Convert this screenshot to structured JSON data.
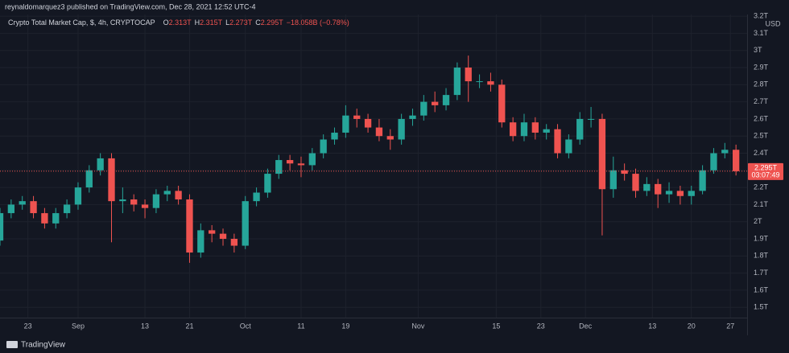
{
  "header": {
    "published": "reynaldomarquez3 published on TradingView.com, Dec 28, 2021 12:52 UTC-4",
    "brand": "TradingView"
  },
  "chart_data": {
    "type": "candlestick",
    "title": "Crypto Total Market Cap, $, 4h, CRYPTOCAP",
    "ohlc_legend": [
      {
        "key": "O",
        "value": "2.313T"
      },
      {
        "key": "H",
        "value": "2.315T"
      },
      {
        "key": "L",
        "value": "2.273T"
      },
      {
        "key": "C",
        "value": "2.295T"
      }
    ],
    "change": "−18.058B (−0.78%)",
    "currency": "USD",
    "x": [
      "2021-08-18",
      "2021-08-20",
      "2021-08-22",
      "2021-08-24",
      "2021-08-26",
      "2021-08-28",
      "2021-08-30",
      "2021-09-01",
      "2021-09-03",
      "2021-09-05",
      "2021-09-07",
      "2021-09-09",
      "2021-09-11",
      "2021-09-13",
      "2021-09-15",
      "2021-09-17",
      "2021-09-19",
      "2021-09-21",
      "2021-09-23",
      "2021-09-25",
      "2021-09-27",
      "2021-09-29",
      "2021-10-01",
      "2021-10-03",
      "2021-10-05",
      "2021-10-07",
      "2021-10-09",
      "2021-10-11",
      "2021-10-13",
      "2021-10-15",
      "2021-10-17",
      "2021-10-19",
      "2021-10-21",
      "2021-10-23",
      "2021-10-25",
      "2021-10-27",
      "2021-10-29",
      "2021-10-31",
      "2021-11-02",
      "2021-11-04",
      "2021-11-06",
      "2021-11-08",
      "2021-11-10",
      "2021-11-12",
      "2021-11-14",
      "2021-11-16",
      "2021-11-18",
      "2021-11-20",
      "2021-11-22",
      "2021-11-24",
      "2021-11-26",
      "2021-11-28",
      "2021-11-30",
      "2021-12-02",
      "2021-12-04",
      "2021-12-06",
      "2021-12-08",
      "2021-12-10",
      "2021-12-12",
      "2021-12-14",
      "2021-12-16",
      "2021-12-18",
      "2021-12-20",
      "2021-12-22",
      "2021-12-24",
      "2021-12-26",
      "2021-12-28"
    ],
    "open": [
      1.89,
      2.05,
      2.1,
      2.12,
      2.05,
      1.99,
      2.05,
      2.1,
      2.2,
      2.3,
      2.37,
      2.12,
      2.13,
      2.1,
      2.08,
      2.16,
      2.18,
      2.13,
      1.82,
      1.95,
      1.93,
      1.9,
      1.86,
      2.12,
      2.17,
      2.28,
      2.36,
      2.34,
      2.33,
      2.4,
      2.48,
      2.52,
      2.62,
      2.6,
      2.55,
      2.5,
      2.48,
      2.6,
      2.62,
      2.7,
      2.68,
      2.74,
      2.9,
      2.82,
      2.82,
      2.8,
      2.58,
      2.5,
      2.58,
      2.52,
      2.54,
      2.4,
      2.48,
      2.6,
      2.6,
      2.19,
      2.3,
      2.28,
      2.18,
      2.22,
      2.16,
      2.18,
      2.15,
      2.18,
      2.3,
      2.4,
      2.42
    ],
    "high": [
      2.08,
      2.13,
      2.15,
      2.15,
      2.08,
      2.08,
      2.13,
      2.23,
      2.33,
      2.4,
      2.4,
      2.2,
      2.16,
      2.13,
      2.19,
      2.21,
      2.21,
      2.16,
      1.99,
      1.98,
      1.96,
      1.93,
      2.15,
      2.2,
      2.31,
      2.39,
      2.39,
      2.38,
      2.43,
      2.51,
      2.55,
      2.68,
      2.66,
      2.63,
      2.6,
      2.54,
      2.63,
      2.66,
      2.74,
      2.76,
      2.78,
      2.93,
      2.97,
      2.86,
      2.87,
      2.83,
      2.61,
      2.63,
      2.61,
      2.57,
      2.57,
      2.51,
      2.64,
      2.67,
      2.63,
      2.38,
      2.34,
      2.31,
      2.26,
      2.25,
      2.23,
      2.21,
      2.21,
      2.33,
      2.43,
      2.46,
      2.45
    ],
    "low": [
      1.86,
      2.02,
      2.07,
      2.02,
      1.96,
      1.96,
      2.02,
      2.07,
      2.17,
      2.27,
      1.88,
      2.05,
      2.06,
      2.02,
      2.05,
      2.12,
      2.1,
      1.76,
      1.79,
      1.88,
      1.86,
      1.82,
      1.84,
      2.09,
      2.14,
      2.25,
      2.3,
      2.26,
      2.3,
      2.37,
      2.45,
      2.49,
      2.55,
      2.52,
      2.47,
      2.42,
      2.45,
      2.56,
      2.59,
      2.64,
      2.65,
      2.71,
      2.7,
      2.78,
      2.76,
      2.55,
      2.47,
      2.47,
      2.48,
      2.48,
      2.37,
      2.37,
      2.45,
      2.55,
      1.92,
      2.14,
      2.24,
      2.14,
      2.15,
      2.08,
      2.11,
      2.1,
      2.1,
      2.16,
      2.28,
      2.37,
      2.27
    ],
    "close": [
      2.05,
      2.1,
      2.12,
      2.05,
      1.99,
      2.05,
      2.1,
      2.2,
      2.3,
      2.37,
      2.12,
      2.13,
      2.1,
      2.08,
      2.16,
      2.18,
      2.13,
      1.82,
      1.95,
      1.93,
      1.9,
      1.86,
      2.12,
      2.17,
      2.28,
      2.36,
      2.34,
      2.33,
      2.4,
      2.48,
      2.52,
      2.62,
      2.6,
      2.55,
      2.5,
      2.48,
      2.6,
      2.62,
      2.7,
      2.68,
      2.74,
      2.9,
      2.82,
      2.82,
      2.8,
      2.58,
      2.5,
      2.58,
      2.52,
      2.54,
      2.4,
      2.48,
      2.6,
      2.6,
      2.19,
      2.3,
      2.28,
      2.18,
      2.22,
      2.16,
      2.18,
      2.15,
      2.18,
      2.3,
      2.4,
      2.42,
      2.295
    ],
    "up_color": "#26a69a",
    "down_color": "#ef5350",
    "last_price": {
      "value": 2.295,
      "label": "2.295T",
      "countdown": "03:07:49",
      "color": "#ef5350"
    },
    "xlim": [
      "2021-08-18",
      "2021-12-30"
    ],
    "xticks": [
      {
        "value": "2021-08-23",
        "label": "23"
      },
      {
        "value": "2021-09-01",
        "label": "Sep"
      },
      {
        "value": "2021-09-13",
        "label": "13"
      },
      {
        "value": "2021-09-21",
        "label": "21"
      },
      {
        "value": "2021-10-01",
        "label": "Oct"
      },
      {
        "value": "2021-10-11",
        "label": "11"
      },
      {
        "value": "2021-10-19",
        "label": "19"
      },
      {
        "value": "2021-11-01",
        "label": "Nov"
      },
      {
        "value": "2021-11-15",
        "label": "15"
      },
      {
        "value": "2021-11-23",
        "label": "23"
      },
      {
        "value": "2021-12-01",
        "label": "Dec"
      },
      {
        "value": "2021-12-13",
        "label": "13"
      },
      {
        "value": "2021-12-20",
        "label": "20"
      },
      {
        "value": "2021-12-27",
        "label": "27"
      }
    ],
    "ylim": [
      1.44,
      3.21
    ],
    "yticks": [
      {
        "value": 1.5,
        "label": "1.5T"
      },
      {
        "value": 1.6,
        "label": "1.6T"
      },
      {
        "value": 1.7,
        "label": "1.7T"
      },
      {
        "value": 1.8,
        "label": "1.8T"
      },
      {
        "value": 1.9,
        "label": "1.9T"
      },
      {
        "value": 2,
        "label": "2T"
      },
      {
        "value": 2.1,
        "label": "2.1T"
      },
      {
        "value": 2.2,
        "label": "2.2T"
      },
      {
        "value": 2.3,
        "label": "2.3T"
      },
      {
        "value": 2.4,
        "label": "2.4T"
      },
      {
        "value": 2.5,
        "label": "2.5T"
      },
      {
        "value": 2.6,
        "label": "2.6T"
      },
      {
        "value": 2.7,
        "label": "2.7T"
      },
      {
        "value": 2.8,
        "label": "2.8T"
      },
      {
        "value": 2.9,
        "label": "2.9T"
      },
      {
        "value": 3,
        "label": "3T"
      },
      {
        "value": 3.1,
        "label": "3.1T"
      },
      {
        "value": 3.2,
        "label": "3.2T"
      }
    ],
    "grid": true
  }
}
